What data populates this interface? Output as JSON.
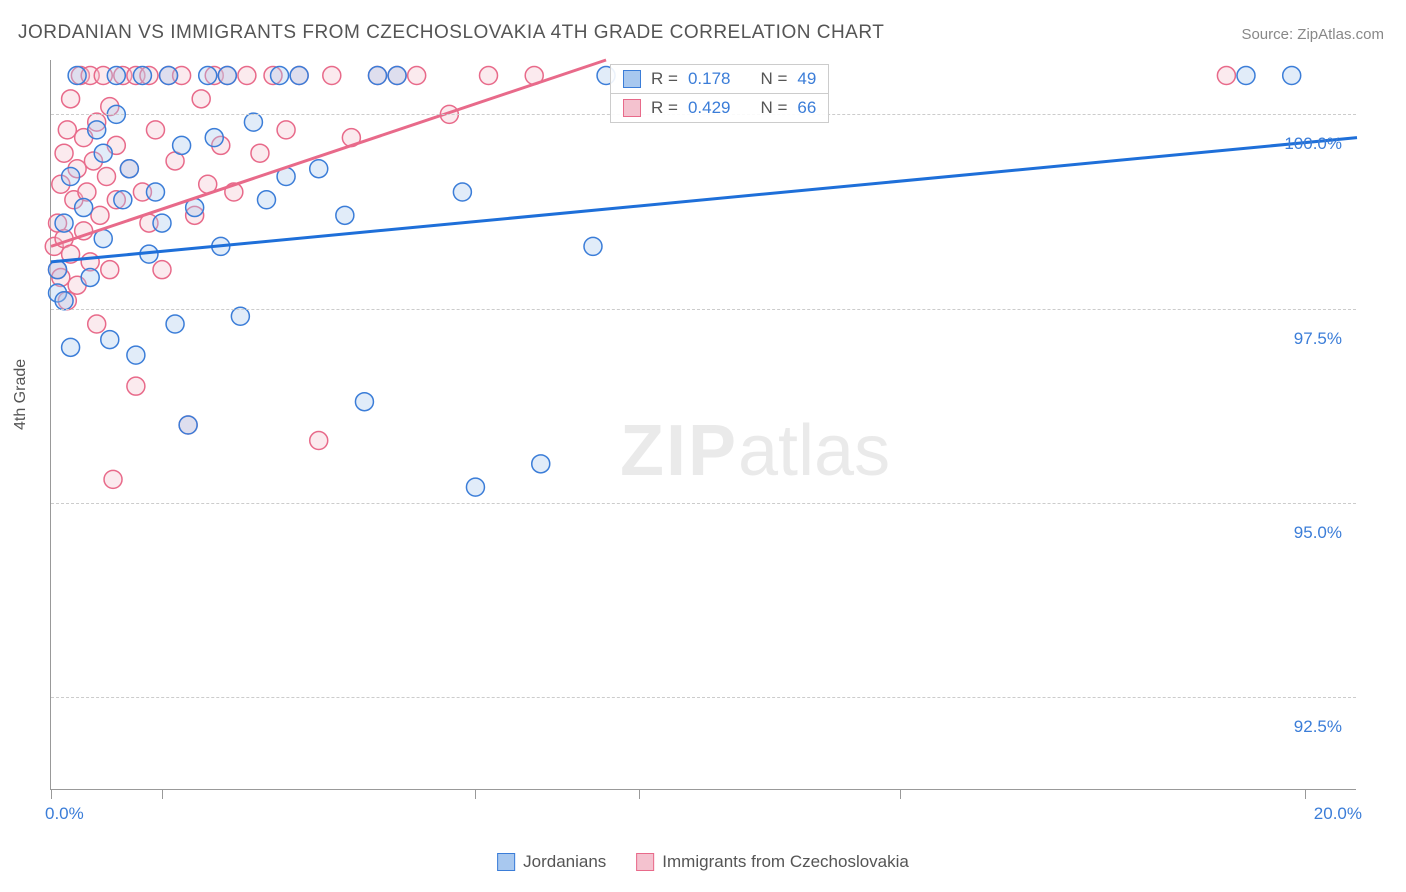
{
  "title": "JORDANIAN VS IMMIGRANTS FROM CZECHOSLOVAKIA 4TH GRADE CORRELATION CHART",
  "source": "Source: ZipAtlas.com",
  "yaxis_label": "4th Grade",
  "watermark_bold": "ZIP",
  "watermark_light": "atlas",
  "chart": {
    "type": "scatter",
    "background_color": "#ffffff",
    "grid_color": "#cccccc",
    "axis_color": "#999999",
    "xlim": [
      0,
      20
    ],
    "ylim": [
      91.3,
      100.7
    ],
    "yticks": [
      92.5,
      95.0,
      97.5,
      100.0
    ],
    "ytick_labels": [
      "92.5%",
      "95.0%",
      "97.5%",
      "100.0%"
    ],
    "xtick_positions": [
      0,
      1.7,
      6.5,
      9.0,
      13.0,
      19.2
    ],
    "xlim_labels": {
      "left": "0.0%",
      "right": "20.0%"
    },
    "tick_label_color": "#3b7dd8",
    "axis_label_color": "#555555",
    "marker_radius": 9,
    "series": {
      "blue": {
        "label": "Jordanians",
        "fill": "#a8c8ef",
        "stroke": "#3b7dd8",
        "line_color": "#1e6fd9",
        "line_width": 3,
        "regression": {
          "x1": 0,
          "y1": 98.1,
          "x2": 20,
          "y2": 99.7
        },
        "stats": {
          "R": "0.178",
          "N": "49"
        },
        "points": [
          [
            0.1,
            97.7
          ],
          [
            0.1,
            98.0
          ],
          [
            0.2,
            97.6
          ],
          [
            0.2,
            98.6
          ],
          [
            0.3,
            97.0
          ],
          [
            0.3,
            99.2
          ],
          [
            0.4,
            100.5
          ],
          [
            0.5,
            98.8
          ],
          [
            0.6,
            97.9
          ],
          [
            0.7,
            99.8
          ],
          [
            0.8,
            98.4
          ],
          [
            0.8,
            99.5
          ],
          [
            0.9,
            97.1
          ],
          [
            1.0,
            100.0
          ],
          [
            1.0,
            100.5
          ],
          [
            1.1,
            98.9
          ],
          [
            1.2,
            99.3
          ],
          [
            1.3,
            96.9
          ],
          [
            1.4,
            100.5
          ],
          [
            1.5,
            98.2
          ],
          [
            1.6,
            99.0
          ],
          [
            1.7,
            98.6
          ],
          [
            1.8,
            100.5
          ],
          [
            1.9,
            97.3
          ],
          [
            2.0,
            99.6
          ],
          [
            2.1,
            96.0
          ],
          [
            2.2,
            98.8
          ],
          [
            2.4,
            100.5
          ],
          [
            2.5,
            99.7
          ],
          [
            2.6,
            98.3
          ],
          [
            2.7,
            100.5
          ],
          [
            2.9,
            97.4
          ],
          [
            3.1,
            99.9
          ],
          [
            3.3,
            98.9
          ],
          [
            3.5,
            100.5
          ],
          [
            3.6,
            99.2
          ],
          [
            3.8,
            100.5
          ],
          [
            4.1,
            99.3
          ],
          [
            4.5,
            98.7
          ],
          [
            4.8,
            96.3
          ],
          [
            5.0,
            100.5
          ],
          [
            5.3,
            100.5
          ],
          [
            6.3,
            99.0
          ],
          [
            6.5,
            95.2
          ],
          [
            7.5,
            95.5
          ],
          [
            8.3,
            98.3
          ],
          [
            8.5,
            100.5
          ],
          [
            18.3,
            100.5
          ],
          [
            19.0,
            100.5
          ]
        ]
      },
      "pink": {
        "label": "Immigrants from Czechoslovakia",
        "fill": "#f4c2cf",
        "stroke": "#e86a8a",
        "line_color": "#e86a8a",
        "line_width": 3,
        "regression": {
          "x1": 0,
          "y1": 98.3,
          "x2": 8.5,
          "y2": 100.7
        },
        "stats": {
          "R": "0.429",
          "N": "66"
        },
        "points": [
          [
            0.05,
            98.3
          ],
          [
            0.1,
            98.0
          ],
          [
            0.1,
            98.6
          ],
          [
            0.15,
            97.9
          ],
          [
            0.15,
            99.1
          ],
          [
            0.2,
            98.4
          ],
          [
            0.2,
            99.5
          ],
          [
            0.25,
            97.6
          ],
          [
            0.25,
            99.8
          ],
          [
            0.3,
            98.2
          ],
          [
            0.3,
            100.2
          ],
          [
            0.35,
            98.9
          ],
          [
            0.4,
            97.8
          ],
          [
            0.4,
            99.3
          ],
          [
            0.45,
            100.5
          ],
          [
            0.5,
            98.5
          ],
          [
            0.5,
            99.7
          ],
          [
            0.55,
            99.0
          ],
          [
            0.6,
            98.1
          ],
          [
            0.6,
            100.5
          ],
          [
            0.65,
            99.4
          ],
          [
            0.7,
            97.3
          ],
          [
            0.7,
            99.9
          ],
          [
            0.75,
            98.7
          ],
          [
            0.8,
            100.5
          ],
          [
            0.85,
            99.2
          ],
          [
            0.9,
            98.0
          ],
          [
            0.9,
            100.1
          ],
          [
            0.95,
            95.3
          ],
          [
            1.0,
            99.6
          ],
          [
            1.0,
            98.9
          ],
          [
            1.1,
            100.5
          ],
          [
            1.2,
            99.3
          ],
          [
            1.3,
            96.5
          ],
          [
            1.3,
            100.5
          ],
          [
            1.4,
            99.0
          ],
          [
            1.5,
            98.6
          ],
          [
            1.5,
            100.5
          ],
          [
            1.6,
            99.8
          ],
          [
            1.7,
            98.0
          ],
          [
            1.8,
            100.5
          ],
          [
            1.9,
            99.4
          ],
          [
            2.0,
            100.5
          ],
          [
            2.1,
            96.0
          ],
          [
            2.2,
            98.7
          ],
          [
            2.3,
            100.2
          ],
          [
            2.4,
            99.1
          ],
          [
            2.5,
            100.5
          ],
          [
            2.6,
            99.6
          ],
          [
            2.7,
            100.5
          ],
          [
            2.8,
            99.0
          ],
          [
            3.0,
            100.5
          ],
          [
            3.2,
            99.5
          ],
          [
            3.4,
            100.5
          ],
          [
            3.6,
            99.8
          ],
          [
            3.8,
            100.5
          ],
          [
            4.1,
            95.8
          ],
          [
            4.3,
            100.5
          ],
          [
            4.6,
            99.7
          ],
          [
            5.0,
            100.5
          ],
          [
            5.3,
            100.5
          ],
          [
            5.6,
            100.5
          ],
          [
            6.1,
            100.0
          ],
          [
            6.7,
            100.5
          ],
          [
            7.4,
            100.5
          ],
          [
            18.0,
            100.5
          ]
        ]
      }
    }
  },
  "statbox_label_R": "R =",
  "statbox_label_N": "N ="
}
